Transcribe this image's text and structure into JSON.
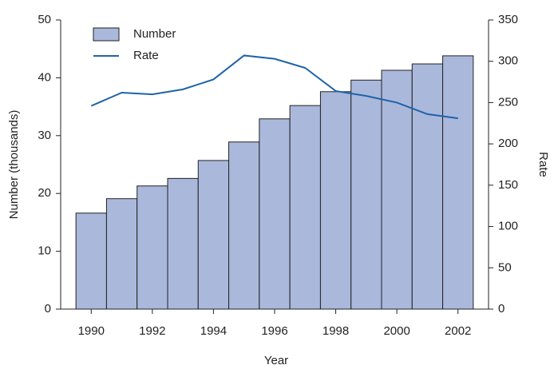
{
  "chart_data": {
    "type": "bar_line",
    "x_label": "Year",
    "y_label": "Number (thousands)",
    "y2_label": "Rate",
    "x": [
      1990,
      1991,
      1992,
      1993,
      1994,
      1995,
      1996,
      1997,
      1998,
      1999,
      2000,
      2001,
      2002
    ],
    "xlim": [
      1989,
      2003
    ],
    "xticks": [
      1990,
      1992,
      1994,
      1996,
      1998,
      2000,
      2002
    ],
    "ylim": [
      0,
      50
    ],
    "yticks": [
      0,
      10,
      20,
      30,
      40,
      50
    ],
    "y2lim": [
      0,
      350
    ],
    "y2ticks": [
      0,
      50,
      100,
      150,
      200,
      250,
      300,
      350
    ],
    "legend": "upper left",
    "series": [
      {
        "name": "Number",
        "kind": "bar",
        "color": "#aab8dc",
        "values": [
          16.6,
          19.1,
          21.3,
          22.6,
          25.7,
          28.9,
          32.9,
          35.2,
          37.6,
          39.6,
          41.3,
          42.4,
          43.8
        ]
      },
      {
        "name": "Rate",
        "kind": "line",
        "axis": "y2",
        "color": "#1f63a8",
        "values": [
          246,
          262,
          260,
          266,
          278,
          307,
          303,
          292,
          264,
          258,
          250,
          236,
          231
        ]
      }
    ]
  }
}
